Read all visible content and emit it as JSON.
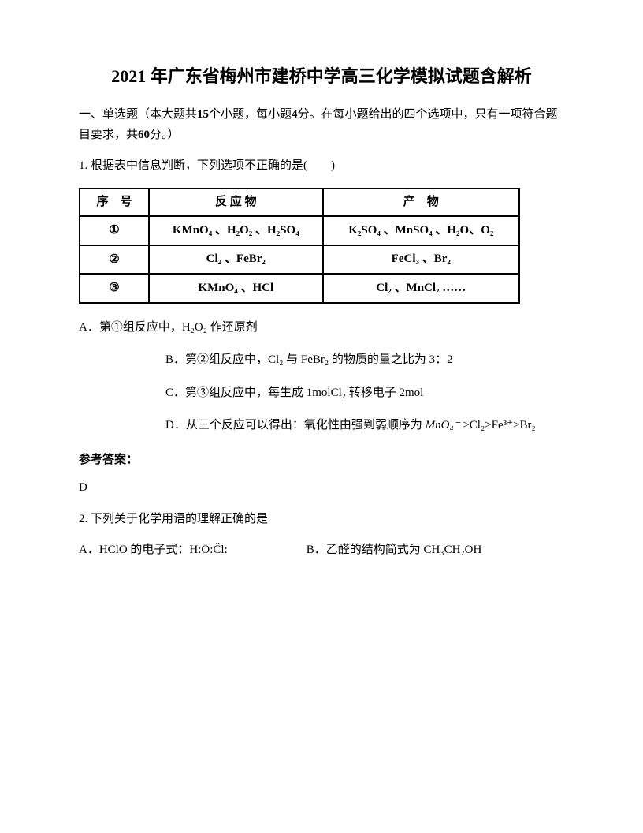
{
  "title": "2021 年广东省梅州市建桥中学高三化学模拟试题含解析",
  "section_header_pre": "一、单选题（本大题共",
  "section_header_num1": "15",
  "section_header_mid1": "个小题，每小题",
  "section_header_num2": "4",
  "section_header_mid2": "分。在每小题给出的四个选项中，只有一项符合题目要求，共",
  "section_header_num3": "60",
  "section_header_post": "分。）",
  "q1": {
    "stem": "1. 根据表中信息判断，下列选项不正确的是(　　)",
    "table": {
      "headers": [
        "序　号",
        "反 应 物",
        "产　物"
      ],
      "rows": [
        [
          "①",
          "KMnO₄ 、H₂O₂ 、H₂SO₄",
          "K₂SO₄ 、MnSO₄ 、H₂O、O₂"
        ],
        [
          "②",
          "Cl₂ 、FeBr₂",
          "FeCl₃ 、Br₂"
        ],
        [
          "③",
          "KMnO₄ 、HCl",
          "Cl₂ 、MnCl₂ ……"
        ]
      ]
    },
    "optA": "A．第①组反应中，H₂O₂ 作还原剂",
    "optB": "B．第②组反应中，Cl₂ 与 FeBr₂ 的物质的量之比为 3：2",
    "optC": "C．第③组反应中，每生成 1molCl₂ 转移电子 2mol",
    "optD_pre": "D．从三个反应可以得出：氧化性由强到弱顺序为 ",
    "optD_formula": "MnO₄⁻",
    "optD_post": " >Cl₂>Fe³⁺>Br₂",
    "answer_label": "参考答案：",
    "answer": "D"
  },
  "q2": {
    "stem": "2. 下列关于化学用语的理解正确的是",
    "optA_pre": "A．HClO 的电子式：",
    "optA_formula": "H:Ö:C̈l:",
    "optB": "B．乙醛的结构简式为 CH₃CH₂OH"
  }
}
